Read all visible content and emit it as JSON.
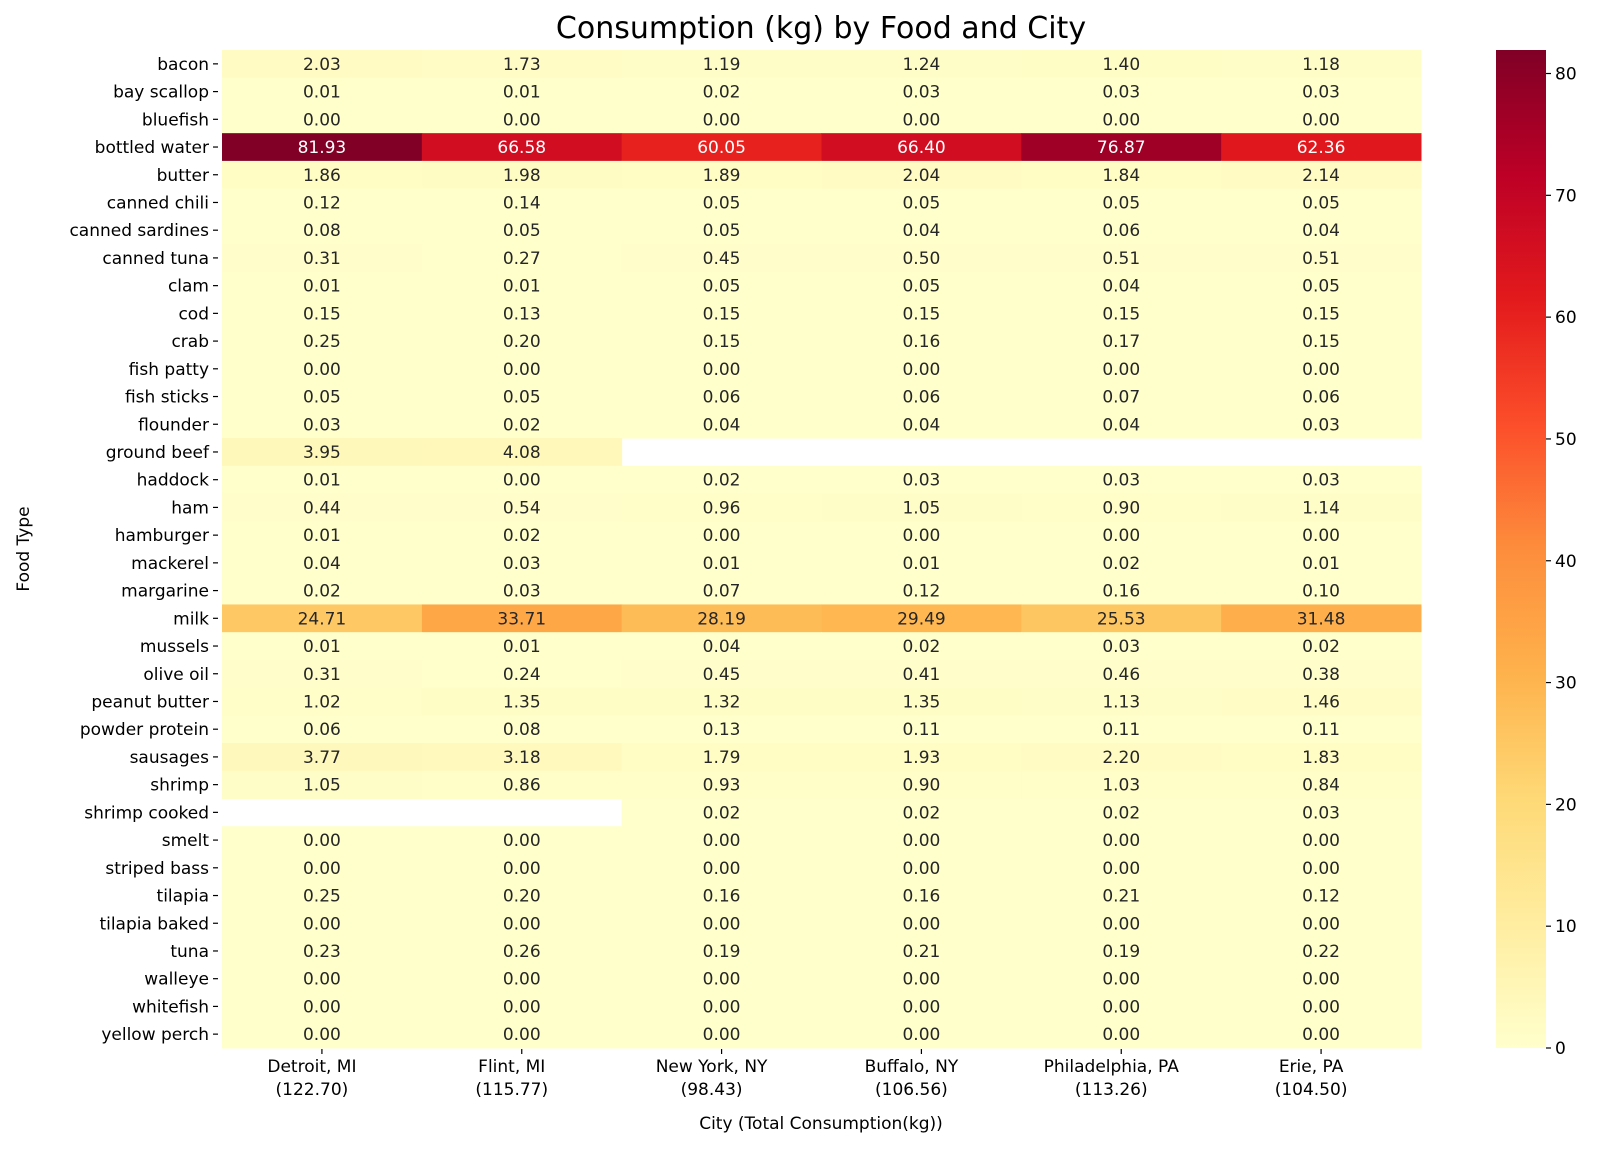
{
  "chart_data": {
    "type": "heatmap",
    "title": "Consumption (kg) by Food and City",
    "xlabel": "City (Total Consumption(kg))",
    "ylabel": "Food Type",
    "colormap": "YlOrRd",
    "colormap_stops": [
      "#ffffcc",
      "#ffeda0",
      "#fed976",
      "#feb24c",
      "#fd8d3c",
      "#fc4e2a",
      "#e31a1c",
      "#bd0026",
      "#800026"
    ],
    "vmin": 0,
    "vmax": 81.93,
    "colorbar_ticks": [
      0,
      10,
      20,
      30,
      40,
      50,
      60,
      70,
      80
    ],
    "columns": [
      {
        "city": "Detroit, MI",
        "total": "(122.70)"
      },
      {
        "city": "Flint, MI",
        "total": "(115.77)"
      },
      {
        "city": "New York, NY",
        "total": "(98.43)"
      },
      {
        "city": "Buffalo, NY",
        "total": "(106.56)"
      },
      {
        "city": "Philadelphia, PA",
        "total": "(113.26)"
      },
      {
        "city": "Erie, PA",
        "total": "(104.50)"
      }
    ],
    "rows": [
      {
        "food": "bacon",
        "values": [
          2.03,
          1.73,
          1.19,
          1.24,
          1.4,
          1.18
        ]
      },
      {
        "food": "bay scallop",
        "values": [
          0.01,
          0.01,
          0.02,
          0.03,
          0.03,
          0.03
        ]
      },
      {
        "food": "bluefish",
        "values": [
          0.0,
          0.0,
          0.0,
          0.0,
          0.0,
          0.0
        ]
      },
      {
        "food": "bottled water",
        "values": [
          81.93,
          66.58,
          60.05,
          66.4,
          76.87,
          62.36
        ]
      },
      {
        "food": "butter",
        "values": [
          1.86,
          1.98,
          1.89,
          2.04,
          1.84,
          2.14
        ]
      },
      {
        "food": "canned chili",
        "values": [
          0.12,
          0.14,
          0.05,
          0.05,
          0.05,
          0.05
        ]
      },
      {
        "food": "canned sardines",
        "values": [
          0.08,
          0.05,
          0.05,
          0.04,
          0.06,
          0.04
        ]
      },
      {
        "food": "canned tuna",
        "values": [
          0.31,
          0.27,
          0.45,
          0.5,
          0.51,
          0.51
        ]
      },
      {
        "food": "clam",
        "values": [
          0.01,
          0.01,
          0.05,
          0.05,
          0.04,
          0.05
        ]
      },
      {
        "food": "cod",
        "values": [
          0.15,
          0.13,
          0.15,
          0.15,
          0.15,
          0.15
        ]
      },
      {
        "food": "crab",
        "values": [
          0.25,
          0.2,
          0.15,
          0.16,
          0.17,
          0.15
        ]
      },
      {
        "food": "fish patty",
        "values": [
          0.0,
          0.0,
          0.0,
          0.0,
          0.0,
          0.0
        ]
      },
      {
        "food": "fish sticks",
        "values": [
          0.05,
          0.05,
          0.06,
          0.06,
          0.07,
          0.06
        ]
      },
      {
        "food": "flounder",
        "values": [
          0.03,
          0.02,
          0.04,
          0.04,
          0.04,
          0.03
        ]
      },
      {
        "food": "ground beef",
        "values": [
          3.95,
          4.08,
          null,
          null,
          null,
          null
        ]
      },
      {
        "food": "haddock",
        "values": [
          0.01,
          0.0,
          0.02,
          0.03,
          0.03,
          0.03
        ]
      },
      {
        "food": "ham",
        "values": [
          0.44,
          0.54,
          0.96,
          1.05,
          0.9,
          1.14
        ]
      },
      {
        "food": "hamburger",
        "values": [
          0.01,
          0.02,
          0.0,
          0.0,
          0.0,
          0.0
        ]
      },
      {
        "food": "mackerel",
        "values": [
          0.04,
          0.03,
          0.01,
          0.01,
          0.02,
          0.01
        ]
      },
      {
        "food": "margarine",
        "values": [
          0.02,
          0.03,
          0.07,
          0.12,
          0.16,
          0.1
        ]
      },
      {
        "food": "milk",
        "values": [
          24.71,
          33.71,
          28.19,
          29.49,
          25.53,
          31.48
        ]
      },
      {
        "food": "mussels",
        "values": [
          0.01,
          0.01,
          0.04,
          0.02,
          0.03,
          0.02
        ]
      },
      {
        "food": "olive oil",
        "values": [
          0.31,
          0.24,
          0.45,
          0.41,
          0.46,
          0.38
        ]
      },
      {
        "food": "peanut butter",
        "values": [
          1.02,
          1.35,
          1.32,
          1.35,
          1.13,
          1.46
        ]
      },
      {
        "food": "powder protein",
        "values": [
          0.06,
          0.08,
          0.13,
          0.11,
          0.11,
          0.11
        ]
      },
      {
        "food": "sausages",
        "values": [
          3.77,
          3.18,
          1.79,
          1.93,
          2.2,
          1.83
        ]
      },
      {
        "food": "shrimp",
        "values": [
          1.05,
          0.86,
          0.93,
          0.9,
          1.03,
          0.84
        ]
      },
      {
        "food": "shrimp cooked",
        "values": [
          null,
          null,
          0.02,
          0.02,
          0.02,
          0.03
        ]
      },
      {
        "food": "smelt",
        "values": [
          0.0,
          0.0,
          0.0,
          0.0,
          0.0,
          0.0
        ]
      },
      {
        "food": "striped bass",
        "values": [
          0.0,
          0.0,
          0.0,
          0.0,
          0.0,
          0.0
        ]
      },
      {
        "food": "tilapia",
        "values": [
          0.25,
          0.2,
          0.16,
          0.16,
          0.21,
          0.12
        ]
      },
      {
        "food": "tilapia baked",
        "values": [
          0.0,
          0.0,
          0.0,
          0.0,
          0.0,
          0.0
        ]
      },
      {
        "food": "tuna",
        "values": [
          0.23,
          0.26,
          0.19,
          0.21,
          0.19,
          0.22
        ]
      },
      {
        "food": "walleye",
        "values": [
          0.0,
          0.0,
          0.0,
          0.0,
          0.0,
          0.0
        ]
      },
      {
        "food": "whitefish",
        "values": [
          0.0,
          0.0,
          0.0,
          0.0,
          0.0,
          0.0
        ]
      },
      {
        "food": "yellow perch",
        "values": [
          0.0,
          0.0,
          0.0,
          0.0,
          0.0,
          0.0
        ]
      }
    ]
  }
}
